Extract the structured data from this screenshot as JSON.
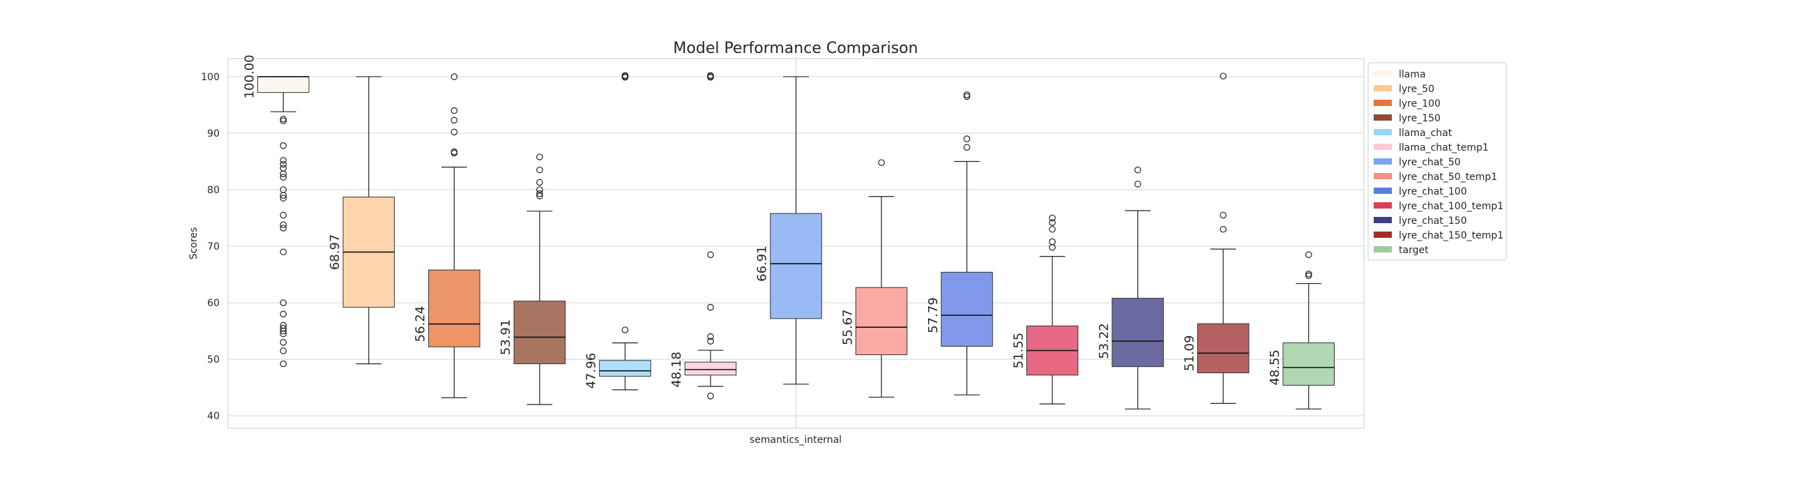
{
  "chart_data": {
    "type": "box",
    "title": "Model Performance Comparison",
    "xlabel": "semantics_internal",
    "ylabel": "Scores",
    "ylim": [
      37.8,
      103.2
    ],
    "yticks": [
      40,
      50,
      60,
      70,
      80,
      90,
      100
    ],
    "grid": true,
    "legend_position": "outside-right-top",
    "categories": [
      "semantics_internal"
    ],
    "series": [
      {
        "name": "llama",
        "color": "#fdf3e8",
        "whisker_low": 93.8,
        "q1": 97.2,
        "median": 100.0,
        "q3": 100.0,
        "whisker_high": 100.0,
        "median_label": "100.00",
        "outliers": [
          92.5,
          92.2,
          87.8,
          85.2,
          84.5,
          83.8,
          82.8,
          82.2,
          80.0,
          79.0,
          78.5,
          75.5,
          73.8,
          73.2,
          69.0,
          60.0,
          58.0,
          56.0,
          55.5,
          55.0,
          54.5,
          53.0,
          51.5,
          49.2
        ]
      },
      {
        "name": "lyre_50",
        "color": "#fdbf7f",
        "whisker_low": 49.2,
        "q1": 59.2,
        "median": 68.97,
        "q3": 78.7,
        "whisker_high": 100.0,
        "median_label": "68.97",
        "outliers": []
      },
      {
        "name": "lyre_100",
        "color": "#e45a16",
        "whisker_low": 43.2,
        "q1": 52.2,
        "median": 56.24,
        "q3": 65.8,
        "whisker_high": 84.0,
        "median_label": "56.24",
        "outliers": [
          86.5,
          86.7,
          90.2,
          92.3,
          94.0,
          100.0
        ]
      },
      {
        "name": "lyre_150",
        "color": "#7c2a0a",
        "whisker_low": 42.0,
        "q1": 49.2,
        "median": 53.91,
        "q3": 60.3,
        "whisker_high": 76.2,
        "median_label": "53.91",
        "outliers": [
          78.9,
          79.3,
          80.0,
          81.3,
          83.5,
          85.8
        ]
      },
      {
        "name": "llama_chat",
        "color": "#86cdf6",
        "whisker_low": 44.6,
        "q1": 47.0,
        "median": 47.96,
        "q3": 49.8,
        "whisker_high": 52.9,
        "median_label": "47.96",
        "outliers": [
          55.2,
          99.9,
          100.0,
          100.2
        ]
      },
      {
        "name": "llama_chat_temp1",
        "color": "#fbc0cc",
        "whisker_low": 45.2,
        "q1": 47.2,
        "median": 48.18,
        "q3": 49.5,
        "whisker_high": 51.6,
        "median_label": "48.18",
        "outliers": [
          43.5,
          53.2,
          54.0,
          59.2,
          68.5,
          99.9,
          100.0,
          100.2
        ]
      },
      {
        "name": "lyre_chat_50",
        "color": "#6295ee",
        "whisker_low": 45.6,
        "q1": 57.2,
        "median": 66.91,
        "q3": 75.8,
        "whisker_high": 100.0,
        "median_label": "66.91",
        "outliers": []
      },
      {
        "name": "lyre_chat_50_temp1",
        "color": "#f77a72",
        "whisker_low": 43.3,
        "q1": 50.8,
        "median": 55.67,
        "q3": 62.7,
        "whisker_high": 78.8,
        "median_label": "55.67",
        "outliers": [
          84.8
        ]
      },
      {
        "name": "lyre_chat_100",
        "color": "#3f62e0",
        "whisker_low": 43.7,
        "q1": 52.3,
        "median": 57.79,
        "q3": 65.4,
        "whisker_high": 85.0,
        "median_label": "57.79",
        "outliers": [
          87.5,
          89.0,
          96.5,
          96.8
        ]
      },
      {
        "name": "lyre_chat_100_temp1",
        "color": "#dc1740",
        "whisker_low": 42.1,
        "q1": 47.2,
        "median": 51.55,
        "q3": 55.9,
        "whisker_high": 68.2,
        "median_label": "51.55",
        "outliers": [
          69.8,
          70.8,
          73.0,
          74.2,
          75.0
        ]
      },
      {
        "name": "lyre_chat_150",
        "color": "#1c1a6e",
        "whisker_low": 41.2,
        "q1": 48.7,
        "median": 53.22,
        "q3": 60.8,
        "whisker_high": 76.3,
        "median_label": "53.22",
        "outliers": [
          81.0,
          83.5
        ]
      },
      {
        "name": "lyre_chat_150_temp1",
        "color": "#8e0c0c",
        "whisker_low": 42.2,
        "q1": 47.6,
        "median": 51.09,
        "q3": 56.3,
        "whisker_high": 69.5,
        "median_label": "51.09",
        "outliers": [
          73.0,
          75.5,
          100.1
        ]
      },
      {
        "name": "target",
        "color": "#89c28a",
        "whisker_low": 41.2,
        "q1": 45.4,
        "median": 48.55,
        "q3": 52.9,
        "whisker_high": 63.4,
        "median_label": "48.55",
        "outliers": [
          64.8,
          65.1,
          68.5
        ]
      }
    ]
  }
}
